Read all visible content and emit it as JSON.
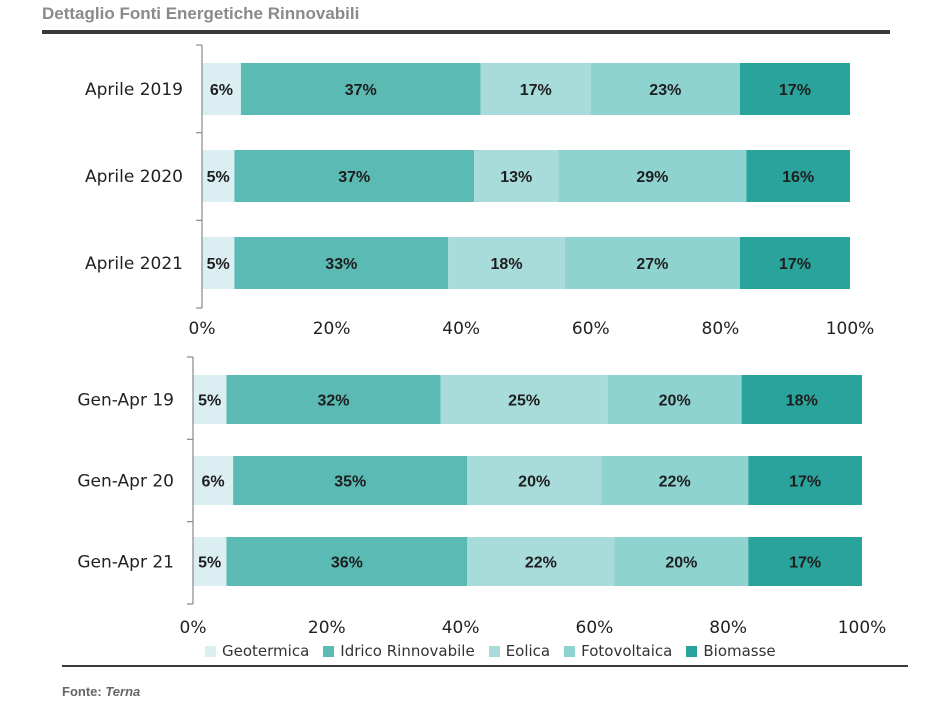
{
  "title": "Dettaglio Fonti Energetiche Rinnovabili",
  "source": {
    "label": "Fonte:",
    "name": "Terna"
  },
  "legend": [
    {
      "name": "Geotermica",
      "color": "#dbeff3"
    },
    {
      "name": "Idrico Rinnovabile",
      "color": "#5bbab3"
    },
    {
      "name": "Eolica",
      "color": "#a8dcdb"
    },
    {
      "name": "Fotovoltaica",
      "color": "#8fd3d0"
    },
    {
      "name": "Biomasse",
      "color": "#2aa39c"
    }
  ],
  "chart_data": [
    {
      "type": "bar",
      "orientation": "horizontal",
      "stacked": true,
      "categories": [
        "Aprile 2019",
        "Aprile 2020",
        "Aprile 2021"
      ],
      "series": [
        {
          "name": "Geotermica",
          "values": [
            6,
            5,
            5
          ]
        },
        {
          "name": "Idrico Rinnovabile",
          "values": [
            37,
            37,
            33
          ]
        },
        {
          "name": "Eolica",
          "values": [
            17,
            13,
            18
          ]
        },
        {
          "name": "Fotovoltaica",
          "values": [
            23,
            29,
            27
          ]
        },
        {
          "name": "Biomasse",
          "values": [
            17,
            16,
            17
          ]
        }
      ],
      "xticks": [
        "0%",
        "20%",
        "40%",
        "60%",
        "80%",
        "100%"
      ],
      "xlim": [
        0,
        100
      ]
    },
    {
      "type": "bar",
      "orientation": "horizontal",
      "stacked": true,
      "categories": [
        "Gen-Apr 19",
        "Gen-Apr 20",
        "Gen-Apr 21"
      ],
      "series": [
        {
          "name": "Geotermica",
          "values": [
            5,
            6,
            5
          ]
        },
        {
          "name": "Idrico Rinnovabile",
          "values": [
            32,
            35,
            36
          ]
        },
        {
          "name": "Eolica",
          "values": [
            25,
            20,
            22
          ]
        },
        {
          "name": "Fotovoltaica",
          "values": [
            20,
            22,
            20
          ]
        },
        {
          "name": "Biomasse",
          "values": [
            18,
            17,
            17
          ]
        }
      ],
      "xticks": [
        "0%",
        "20%",
        "40%",
        "60%",
        "80%",
        "100%"
      ],
      "xlim": [
        0,
        100
      ]
    }
  ]
}
